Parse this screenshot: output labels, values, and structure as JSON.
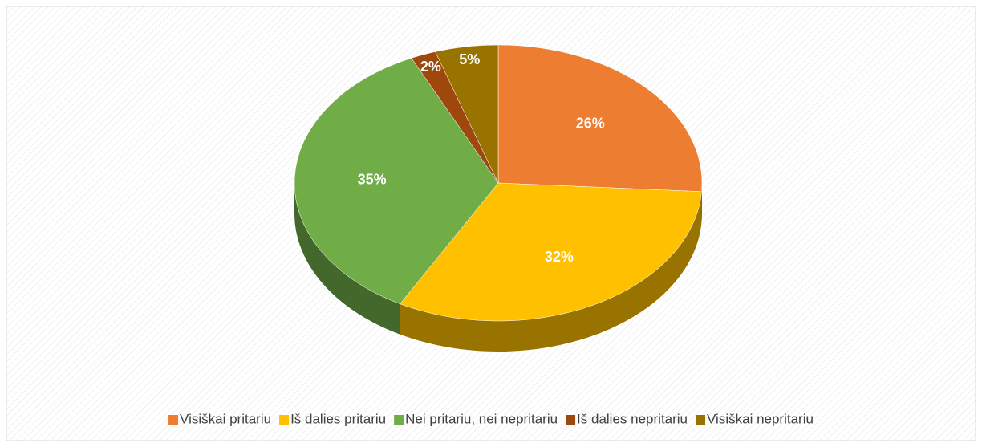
{
  "chart_data": {
    "type": "pie",
    "categories": [
      "Visiškai pritariu",
      "Iš dalies pritariu",
      "Nei pritariu, nei nepritariu",
      "Iš dalies nepritariu",
      "Visiškai nepritariu"
    ],
    "values": [
      26,
      32,
      35,
      2,
      5
    ],
    "value_labels": [
      "26%",
      "32%",
      "35%",
      "2%",
      "5%"
    ],
    "colors": [
      "#ED7D31",
      "#FFC000",
      "#70AD47",
      "#9E480E",
      "#997300"
    ],
    "legend": "bottom"
  }
}
